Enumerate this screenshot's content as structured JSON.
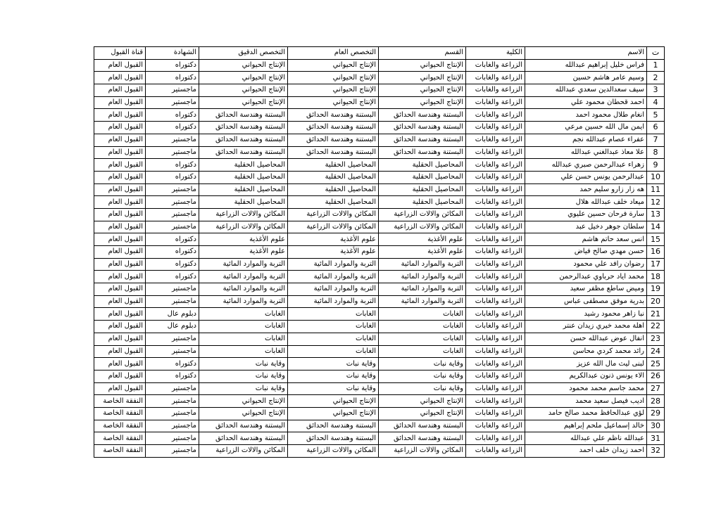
{
  "table": {
    "headers": [
      "ت",
      "الاسم",
      "الكلية",
      "القسم",
      "التخصص العام",
      "التخصص الدقيق",
      "الشهادة",
      "قناة القبول"
    ],
    "rows": [
      [
        1,
        "فراس خليل إبراهيم عبدالله",
        "الزراعة والغابات",
        "الإنتاج الحيواني",
        "الإنتاج الحيواني",
        "الإنتاج الحيواني",
        "دكتوراه",
        "القبول العام"
      ],
      [
        2,
        "وسيم عامر هاشم حسين",
        "الزراعة والغابات",
        "الإنتاج الحيواني",
        "الإنتاج الحيواني",
        "الإنتاج الحيواني",
        "دكتوراه",
        "القبول العام"
      ],
      [
        3,
        "سيف سعدالدين سعدي عبدالله",
        "الزراعة والغابات",
        "الإنتاج الحيواني",
        "الإنتاج الحيواني",
        "الإنتاج الحيواني",
        "ماجستير",
        "القبول العام"
      ],
      [
        4,
        "احمد قحطان محمود علي",
        "الزراعة والغابات",
        "الإنتاج الحيواني",
        "الإنتاج الحيواني",
        "الإنتاج الحيواني",
        "ماجستير",
        "القبول العام"
      ],
      [
        5,
        "انغام طلال محمود احمد",
        "الزراعة والغابات",
        "البستنة وهندسة الحدائق",
        "البستنة وهندسة الحدائق",
        "البستنة وهندسة الحدائق",
        "دكتوراه",
        "القبول العام"
      ],
      [
        6,
        "ايمن مال الله حسين مرعي",
        "الزراعة والغابات",
        "البستنة وهندسة الحدائق",
        "البستنة وهندسة الحدائق",
        "البستنة وهندسة الحدائق",
        "دكتوراه",
        "القبول العام"
      ],
      [
        7,
        "عفراء عصام عبدالله نجم",
        "الزراعة والغابات",
        "البستنة وهندسة الحدائق",
        "البستنة وهندسة الحدائق",
        "البستنة وهندسة الحدائق",
        "ماجستير",
        "القبول العام"
      ],
      [
        8,
        "علا معاذ عبدالغني عبدالله",
        "الزراعة والغابات",
        "البستنة وهندسة الحدائق",
        "البستنة وهندسة الحدائق",
        "البستنة وهندسة الحدائق",
        "ماجستير",
        "القبول العام"
      ],
      [
        9,
        "زهراء عبدالرحمن صبري عبدالله",
        "الزراعة والغابات",
        "المحاصيل الحقلية",
        "المحاصيل الحقلية",
        "المحاصيل الحقلية",
        "دكتوراه",
        "القبول العام"
      ],
      [
        10,
        "عبدالرحمن يونس حسن علي",
        "الزراعة والغابات",
        "المحاصيل الحقلية",
        "المحاصيل الحقلية",
        "المحاصيل الحقلية",
        "دكتوراه",
        "القبول العام"
      ],
      [
        11,
        "هه زار زارو سليم حمد",
        "الزراعة والغابات",
        "المحاصيل الحقلية",
        "المحاصيل الحقلية",
        "المحاصيل الحقلية",
        "ماجستير",
        "القبول العام"
      ],
      [
        12,
        "ميعاد خلف عبدالله هلال",
        "الزراعة والغابات",
        "المحاصيل الحقلية",
        "المحاصيل الحقلية",
        "المحاصيل الحقلية",
        "ماجستير",
        "القبول العام"
      ],
      [
        13,
        "سارة فرحان حسين عليوي",
        "الزراعة والغابات",
        "المكائن والالات الزراعية",
        "المكائن والالات الزراعية",
        "المكائن والالات الزراعية",
        "ماجستير",
        "القبول العام"
      ],
      [
        14,
        "سلطان جوهر دخيل عبد",
        "الزراعة والغابات",
        "المكائن والالات الزراعية",
        "المكائن والالات الزراعية",
        "المكائن والالات الزراعية",
        "ماجستير",
        "القبول العام"
      ],
      [
        15,
        "انس سعد حاتم هاشم",
        "الزراعة والغابات",
        "علوم الأغذية",
        "علوم الأغذية",
        "علوم الأغذية",
        "دكتوراه",
        "القبول العام"
      ],
      [
        16,
        "حسن مهدي صالح فياض",
        "الزراعة والغابات",
        "علوم الأغذية",
        "علوم الأغذية",
        "علوم الأغذية",
        "دكتوراه",
        "القبول العام"
      ],
      [
        17,
        "رضوان رافد علي محمود",
        "الزراعة والغابات",
        "التربة والموارد المائية",
        "التربة والموارد المائية",
        "التربة والموارد المائية",
        "دكتوراه",
        "القبول العام"
      ],
      [
        18,
        "محمد اياد حرباوي عبدالرحمن",
        "الزراعة والغابات",
        "التربة والموارد المائية",
        "التربة والموارد المائية",
        "التربة والموارد المائية",
        "دكتوراه",
        "القبول العام"
      ],
      [
        19,
        "وميض ساطع مظفر سعيد",
        "الزراعة والغابات",
        "التربة والموارد المائية",
        "التربة والموارد المائية",
        "التربة والموارد المائية",
        "ماجستير",
        "القبول العام"
      ],
      [
        20,
        "بدرية موفق مصطفى عباس",
        "الزراعة والغابات",
        "التربة والموارد المائية",
        "التربة والموارد المائية",
        "التربة والموارد المائية",
        "ماجستير",
        "القبول العام"
      ],
      [
        21,
        "نبا زاهر محمود رشيد",
        "الزراعة والغابات",
        "الغابات",
        "الغابات",
        "الغابات",
        "دبلوم عال",
        "القبول العام"
      ],
      [
        22,
        "اهلة محمد خيري زيدان عنتر",
        "الزراعة والغابات",
        "الغابات",
        "الغابات",
        "الغابات",
        "دبلوم عال",
        "القبول العام"
      ],
      [
        23,
        "انفال عوض عبدالله حسن",
        "الزراعة والغابات",
        "الغابات",
        "الغابات",
        "الغابات",
        "ماجستير",
        "القبول العام"
      ],
      [
        24,
        "رائد محمد كردي محاسن",
        "الزراعة والغابات",
        "الغابات",
        "الغابات",
        "الغابات",
        "ماجستير",
        "القبول العام"
      ],
      [
        25,
        "لبنى ليث مال الله عزيز",
        "الزراعة والغابات",
        "وقاية نبات",
        "وقاية نبات",
        "وقاية نبات",
        "دكتوراه",
        "القبول العام"
      ],
      [
        26,
        "الاء يونس ذنون عبدالكريم",
        "الزراعة والغابات",
        "وقاية نبات",
        "وقاية نبات",
        "وقاية نبات",
        "دكتوراه",
        "القبول العام"
      ],
      [
        27,
        "محمد جاسم محمد محمود",
        "الزراعة والغابات",
        "وقاية نبات",
        "وقاية نبات",
        "وقاية نبات",
        "ماجستير",
        "القبول العام"
      ],
      [
        28,
        "اديب فيصل سعيد محمد",
        "الزراعة والغابات",
        "الإنتاج الحيواني",
        "الإنتاج الحيواني",
        "الإنتاج الحيواني",
        "ماجستير",
        "النفقة الخاصة"
      ],
      [
        29,
        "لؤي عبدالحافظ محمد صالح حامد",
        "الزراعة والغابات",
        "الإنتاج الحيواني",
        "الإنتاج الحيواني",
        "الإنتاج الحيواني",
        "ماجستير",
        "النفقة الخاصة"
      ],
      [
        30,
        "خالد إسماعيل ملحم إبراهيم",
        "الزراعة والغابات",
        "البستنة وهندسة الحدائق",
        "البستنة وهندسة الحدائق",
        "البستنة وهندسة الحدائق",
        "ماجستير",
        "النفقة الخاصة"
      ],
      [
        31,
        "عبدالله ناظم علي عبدالله",
        "الزراعة والغابات",
        "البستنة وهندسة الحدائق",
        "البستنة وهندسة الحدائق",
        "البستنة وهندسة الحدائق",
        "ماجستير",
        "النفقة الخاصة"
      ],
      [
        32,
        "احمد زيدان خلف احمد",
        "الزراعة والغابات",
        "المكائن والالات الزراعية",
        "المكائن والالات الزراعية",
        "المكائن والالات الزراعية",
        "ماجستير",
        "النفقة الخاصة"
      ]
    ]
  }
}
